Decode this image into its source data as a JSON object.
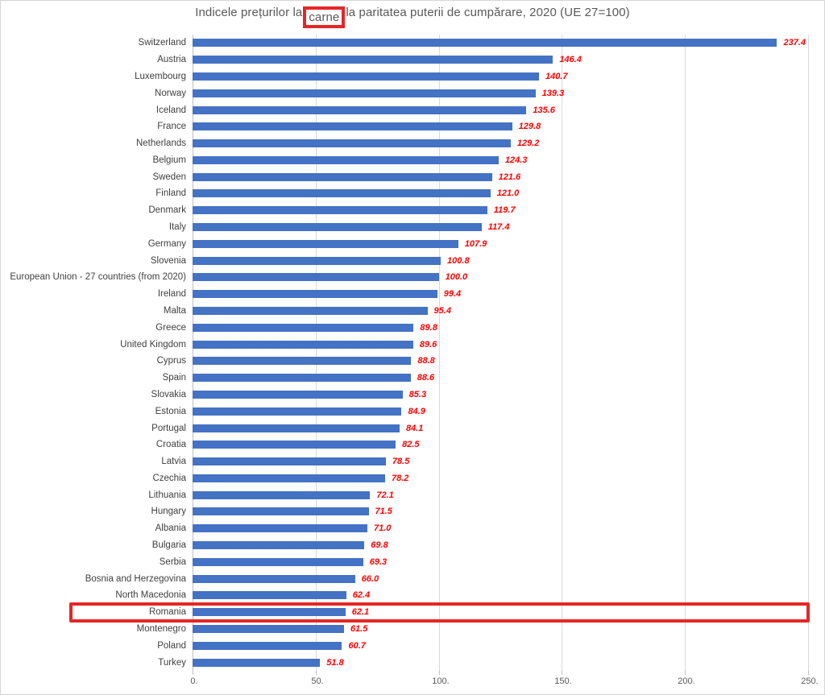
{
  "title": {
    "prefix": "Indicele prețurilor la",
    "highlight": "carne",
    "suffix": "la paritatea puterii de cumpărare, 2020 (UE 27=100)",
    "full": "Indicele prețurilor la carne, la paritatea puterii de cumpărare, 2020 (UE 27=100)"
  },
  "chart_data": {
    "type": "bar",
    "orientation": "horizontal",
    "title": "Indicele prețurilor la carne, la paritatea puterii de cumpărare, 2020 (UE 27=100)",
    "categories": [
      "Switzerland",
      "Austria",
      "Luxembourg",
      "Norway",
      "Iceland",
      "France",
      "Netherlands",
      "Belgium",
      "Sweden",
      "Finland",
      "Denmark",
      "Italy",
      "Germany",
      "Slovenia",
      "European Union - 27 countries (from 2020)",
      "Ireland",
      "Malta",
      "Greece",
      "United Kingdom",
      "Cyprus",
      "Spain",
      "Slovakia",
      "Estonia",
      "Portugal",
      "Croatia",
      "Latvia",
      "Czechia",
      "Lithuania",
      "Hungary",
      "Albania",
      "Bulgaria",
      "Serbia",
      "Bosnia and Herzegovina",
      "North Macedonia",
      "Romania",
      "Montenegro",
      "Poland",
      "Turkey"
    ],
    "values": [
      237.4,
      146.4,
      140.7,
      139.3,
      135.6,
      129.8,
      129.2,
      124.3,
      121.6,
      121.0,
      119.7,
      117.4,
      107.9,
      100.8,
      100.0,
      99.4,
      95.4,
      89.8,
      89.6,
      88.8,
      88.6,
      85.3,
      84.9,
      84.1,
      82.5,
      78.5,
      78.2,
      72.1,
      71.5,
      71.0,
      69.8,
      69.3,
      66.0,
      62.4,
      62.1,
      61.5,
      60.7,
      51.8
    ],
    "xlim": [
      0,
      250
    ],
    "x_tick_values": [
      0,
      50,
      100,
      150,
      200,
      250
    ],
    "x_tick_labels": [
      "0.",
      "50.",
      "100.",
      "150.",
      "200.",
      "250."
    ],
    "grid": true,
    "legend": "none",
    "bar_color": "#4472c4",
    "value_label_color": "#ff0000",
    "category_label_color": "#404040",
    "annotation_color": "#e42726",
    "highlighted_category": "Romania",
    "highlighted_title_word": "carne"
  }
}
